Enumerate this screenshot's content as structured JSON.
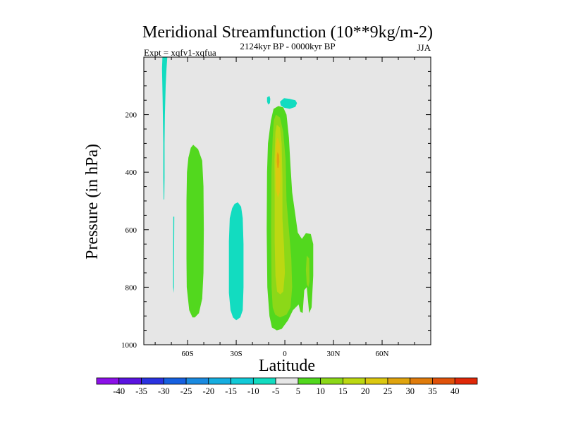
{
  "chart_data": {
    "type": "contour",
    "title": "Meridional Streamfunction (10**9kg/m-2)",
    "subtitle": "2124kyr BP - 0000kyr BP",
    "left_label": "Expt = xqfv1-xqfua",
    "right_label": "JJA",
    "xlabel": "Latitude",
    "ylabel": "Pressure (in hPa)",
    "x_ticks": [
      "60S",
      "30S",
      "0",
      "30N",
      "60N"
    ],
    "x_tick_values": [
      -60,
      -30,
      0,
      30,
      60
    ],
    "xlim": [
      -87,
      90
    ],
    "y_ticks": [
      "200",
      "400",
      "600",
      "800",
      "1000"
    ],
    "y_tick_values": [
      200,
      400,
      600,
      800,
      1000
    ],
    "ylim": [
      0,
      1000
    ],
    "y_reversed": true,
    "background_color": "#e6e6e6",
    "colorbar": {
      "labels": [
        "-40",
        "-35",
        "-30",
        "-25",
        "-20",
        "-15",
        "-10",
        "-5",
        "5",
        "10",
        "15",
        "20",
        "25",
        "30",
        "35",
        "40"
      ],
      "colors": [
        "#8c10e8",
        "#5a14e0",
        "#2a32e0",
        "#1660e0",
        "#1a8ae0",
        "#16aee0",
        "#12cad8",
        "#12dcc0",
        "#e6e6e6",
        "#52d81e",
        "#8cd818",
        "#bcd812",
        "#dcc810",
        "#e0a40e",
        "#e07c0c",
        "#e0520a",
        "#e02808"
      ]
    },
    "regions": [
      {
        "name": "neg-strip-high-lat-upper",
        "level": "-10 to -5",
        "color": "#12dcc0",
        "points": [
          [
            -75.5,
            0
          ],
          [
            -72.5,
            0
          ],
          [
            -73,
            40
          ],
          [
            -73.5,
            100
          ],
          [
            -74,
            200
          ],
          [
            -74.2,
            300
          ],
          [
            -74.2,
            420
          ],
          [
            -74.4,
            495
          ],
          [
            -74.8,
            495
          ],
          [
            -75,
            420
          ],
          [
            -75,
            300
          ],
          [
            -75.4,
            150
          ],
          [
            -75.8,
            40
          ]
        ]
      },
      {
        "name": "neg-strip-high-lat-lower",
        "level": "-10 to -5",
        "color": "#12dcc0",
        "points": [
          [
            -68.8,
            555
          ],
          [
            -68.2,
            555
          ],
          [
            -68.3,
            650
          ],
          [
            -68.4,
            730
          ],
          [
            -68.4,
            800
          ],
          [
            -68.6,
            820
          ],
          [
            -68.9,
            800
          ],
          [
            -68.9,
            700
          ]
        ]
      },
      {
        "name": "pos-cell-southern-midlat",
        "level": "5 to 10",
        "color": "#52d81e",
        "points": [
          [
            -58,
            315
          ],
          [
            -56.5,
            305
          ],
          [
            -53.5,
            320
          ],
          [
            -51,
            360
          ],
          [
            -50.2,
            450
          ],
          [
            -50,
            600
          ],
          [
            -50.2,
            750
          ],
          [
            -51,
            840
          ],
          [
            -53,
            890
          ],
          [
            -55.5,
            905
          ],
          [
            -57,
            905
          ],
          [
            -59,
            880
          ],
          [
            -60.5,
            800
          ],
          [
            -60.7,
            700
          ],
          [
            -60.7,
            500
          ],
          [
            -60.4,
            400
          ],
          [
            -59.5,
            350
          ]
        ]
      },
      {
        "name": "neg-cell-southern-subtrop",
        "level": "-10 to -5",
        "color": "#12dcc0",
        "points": [
          [
            -31,
            510
          ],
          [
            -29,
            505
          ],
          [
            -27,
            520
          ],
          [
            -26,
            560
          ],
          [
            -25.5,
            650
          ],
          [
            -25.5,
            800
          ],
          [
            -26,
            880
          ],
          [
            -27.5,
            905
          ],
          [
            -30,
            915
          ],
          [
            -32,
            905
          ],
          [
            -33.5,
            880
          ],
          [
            -34.5,
            820
          ],
          [
            -34.5,
            640
          ],
          [
            -34,
            560
          ],
          [
            -32.5,
            525
          ]
        ]
      },
      {
        "name": "neg-blob-upper-small",
        "level": "-10 to -5",
        "color": "#12dcc0",
        "points": [
          [
            -11,
            140
          ],
          [
            -9.5,
            135
          ],
          [
            -9,
            145
          ],
          [
            -9.2,
            160
          ],
          [
            -10.3,
            165
          ],
          [
            -11,
            155
          ]
        ]
      },
      {
        "name": "neg-blob-upper-oval",
        "level": "-10 to -5",
        "color": "#12dcc0",
        "points": [
          [
            -3,
            155
          ],
          [
            -0.5,
            143
          ],
          [
            3,
            145
          ],
          [
            6.5,
            150
          ],
          [
            7.5,
            160
          ],
          [
            6.5,
            173
          ],
          [
            3,
            180
          ],
          [
            -0.5,
            176
          ],
          [
            -2.5,
            168
          ]
        ]
      },
      {
        "name": "pos-cell-tropical-outer",
        "level": "5 to 10",
        "color": "#52d81e",
        "points": [
          [
            -7,
            180
          ],
          [
            -4,
            170
          ],
          [
            -1,
            175
          ],
          [
            1,
            200
          ],
          [
            2.5,
            280
          ],
          [
            3.5,
            380
          ],
          [
            4.5,
            470
          ],
          [
            6.5,
            550
          ],
          [
            8,
            610
          ],
          [
            10.5,
            632
          ],
          [
            13,
            612
          ],
          [
            16,
            615
          ],
          [
            17.5,
            650
          ],
          [
            17.5,
            760
          ],
          [
            16.5,
            870
          ],
          [
            15,
            890
          ],
          [
            14.5,
            860
          ],
          [
            13.5,
            800
          ],
          [
            12,
            810
          ],
          [
            11,
            890
          ],
          [
            9.5,
            885
          ],
          [
            8.5,
            860
          ],
          [
            5,
            880
          ],
          [
            2,
            915
          ],
          [
            -2,
            945
          ],
          [
            -5,
            950
          ],
          [
            -8,
            940
          ],
          [
            -9.5,
            900
          ],
          [
            -10.8,
            800
          ],
          [
            -11.2,
            600
          ],
          [
            -11,
            400
          ],
          [
            -10.4,
            300
          ],
          [
            -8.6,
            220
          ]
        ]
      },
      {
        "name": "pos-blob-tropical-right",
        "level": "10 to 15",
        "color": "#8cd818",
        "points": [
          [
            13.5,
            690
          ],
          [
            15,
            700
          ],
          [
            15.2,
            780
          ],
          [
            14.5,
            800
          ],
          [
            13.5,
            790
          ],
          [
            13,
            740
          ]
        ]
      },
      {
        "name": "pos-cell-tropical-mid",
        "level": "10 to 15",
        "color": "#8cd818",
        "points": [
          [
            -5.5,
            200
          ],
          [
            -3,
            210
          ],
          [
            -1,
            260
          ],
          [
            0.5,
            360
          ],
          [
            1,
            500
          ],
          [
            2.5,
            600
          ],
          [
            4,
            700
          ],
          [
            4.5,
            800
          ],
          [
            3.5,
            870
          ],
          [
            1,
            895
          ],
          [
            -3,
            905
          ],
          [
            -6,
            895
          ],
          [
            -7.5,
            870
          ],
          [
            -8.2,
            800
          ],
          [
            -8.5,
            600
          ],
          [
            -8.3,
            400
          ],
          [
            -7.5,
            280
          ],
          [
            -6.8,
            220
          ]
        ]
      },
      {
        "name": "pos-cell-tropical-inner",
        "level": "15 to 20",
        "color": "#bcd812",
        "points": [
          [
            -5,
            235
          ],
          [
            -3,
            245
          ],
          [
            -2,
            300
          ],
          [
            -1.5,
            420
          ],
          [
            -1.5,
            560
          ],
          [
            -0.5,
            660
          ],
          [
            0,
            750
          ],
          [
            -1,
            815
          ],
          [
            -2.8,
            825
          ],
          [
            -4.8,
            815
          ],
          [
            -5.8,
            760
          ],
          [
            -6.3,
            640
          ],
          [
            -6.3,
            480
          ],
          [
            -6.4,
            360
          ],
          [
            -5.8,
            260
          ]
        ]
      },
      {
        "name": "pos-core-tropical",
        "level": "20 to 25",
        "color": "#dcc810",
        "points": [
          [
            -4.5,
            280
          ],
          [
            -3.2,
            300
          ],
          [
            -2.8,
            350
          ],
          [
            -2.7,
            420
          ],
          [
            -3.2,
            470
          ],
          [
            -4.2,
            490
          ],
          [
            -5.5,
            460
          ],
          [
            -5.8,
            400
          ],
          [
            -5.7,
            330
          ],
          [
            -5.2,
            290
          ]
        ]
      },
      {
        "name": "pos-peak-tropical",
        "level": "25 to 30",
        "color": "#e0a40e",
        "points": [
          [
            -4.5,
            330
          ],
          [
            -3.6,
            340
          ],
          [
            -3.4,
            365
          ],
          [
            -3.9,
            385
          ],
          [
            -4.6,
            385
          ],
          [
            -5,
            365
          ],
          [
            -4.9,
            340
          ]
        ]
      }
    ]
  }
}
